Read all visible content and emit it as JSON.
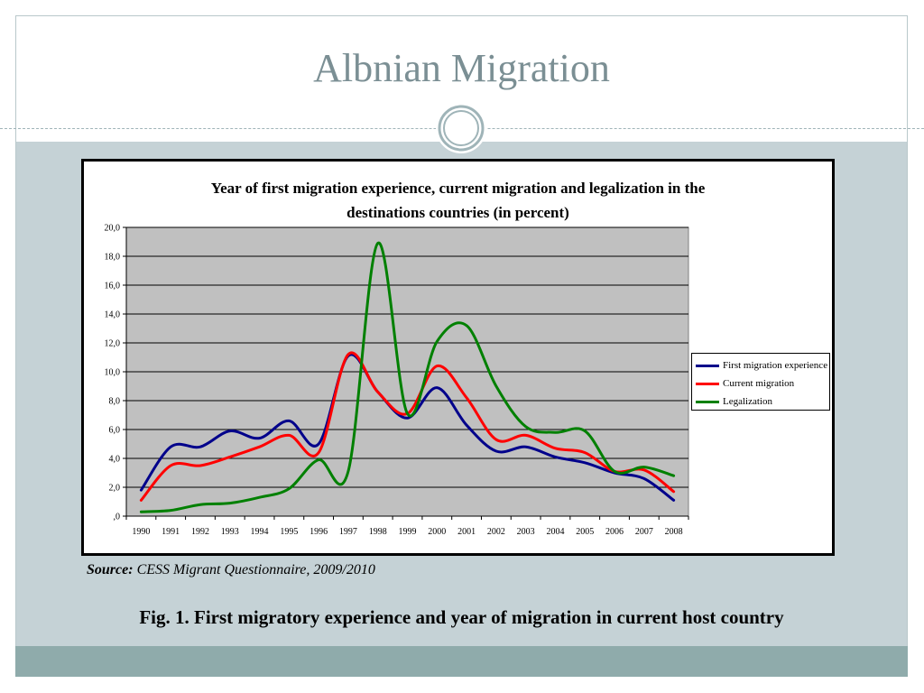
{
  "slide": {
    "title": "Albnian Migration",
    "source_label": "Source:",
    "source_text": "CESS Migrant Questionnaire, 2009/2010",
    "caption": "Fig. 1. First migratory experience and year of migration in current host country"
  },
  "colors": {
    "first": "#00008b",
    "current": "#ff0000",
    "legalization": "#008000",
    "plot_bg": "#c0c0c0",
    "title_text": "#7b8f94",
    "frame_bg": "#c5d2d6",
    "footer_band": "#8fabab"
  },
  "chart_data": {
    "type": "line",
    "title_line1": "Year of first migration experience, current migration and legalization in the",
    "title_line2": "destinations countries (in percent)",
    "x": [
      1990,
      1991,
      1992,
      1993,
      1994,
      1995,
      1996,
      1997,
      1998,
      1999,
      2000,
      2001,
      2002,
      2003,
      2004,
      2005,
      2006,
      2007,
      2008
    ],
    "x_tick_labels": [
      "1990",
      "1991",
      "1992",
      "1993",
      "1994",
      "1995",
      "1996",
      "1997",
      "1998",
      "1999",
      "2000",
      "2001",
      "2002",
      "2003",
      "2004",
      "2005",
      "2006",
      "2007",
      "2008"
    ],
    "ylim": [
      0,
      20
    ],
    "y_tick_values": [
      0,
      2,
      4,
      6,
      8,
      10,
      12,
      14,
      16,
      18,
      20
    ],
    "y_tick_labels": [
      ",0",
      "2,0",
      "4,0",
      "6,0",
      "8,0",
      "10,0",
      "12,0",
      "14,0",
      "16,0",
      "18,0",
      "20,0"
    ],
    "grid": "horizontal",
    "legend_position": "right",
    "series": [
      {
        "name": "First migration experience",
        "color_key": "first",
        "values": [
          1.8,
          4.8,
          4.8,
          5.9,
          5.4,
          6.6,
          5.0,
          11.1,
          8.6,
          6.8,
          8.9,
          6.3,
          4.5,
          4.8,
          4.1,
          3.7,
          3.0,
          2.6,
          1.1
        ]
      },
      {
        "name": "Current migration",
        "color_key": "current",
        "values": [
          1.1,
          3.5,
          3.5,
          4.1,
          4.8,
          5.6,
          4.4,
          11.2,
          8.6,
          7.1,
          10.4,
          8.2,
          5.3,
          5.6,
          4.7,
          4.4,
          3.1,
          3.2,
          1.7
        ]
      },
      {
        "name": "Legalization",
        "color_key": "legalization",
        "values": [
          0.3,
          0.4,
          0.8,
          0.9,
          1.3,
          1.9,
          3.9,
          3.1,
          18.9,
          7.1,
          12.1,
          13.2,
          9.0,
          6.2,
          5.8,
          5.9,
          3.1,
          3.4,
          2.8
        ]
      }
    ]
  }
}
